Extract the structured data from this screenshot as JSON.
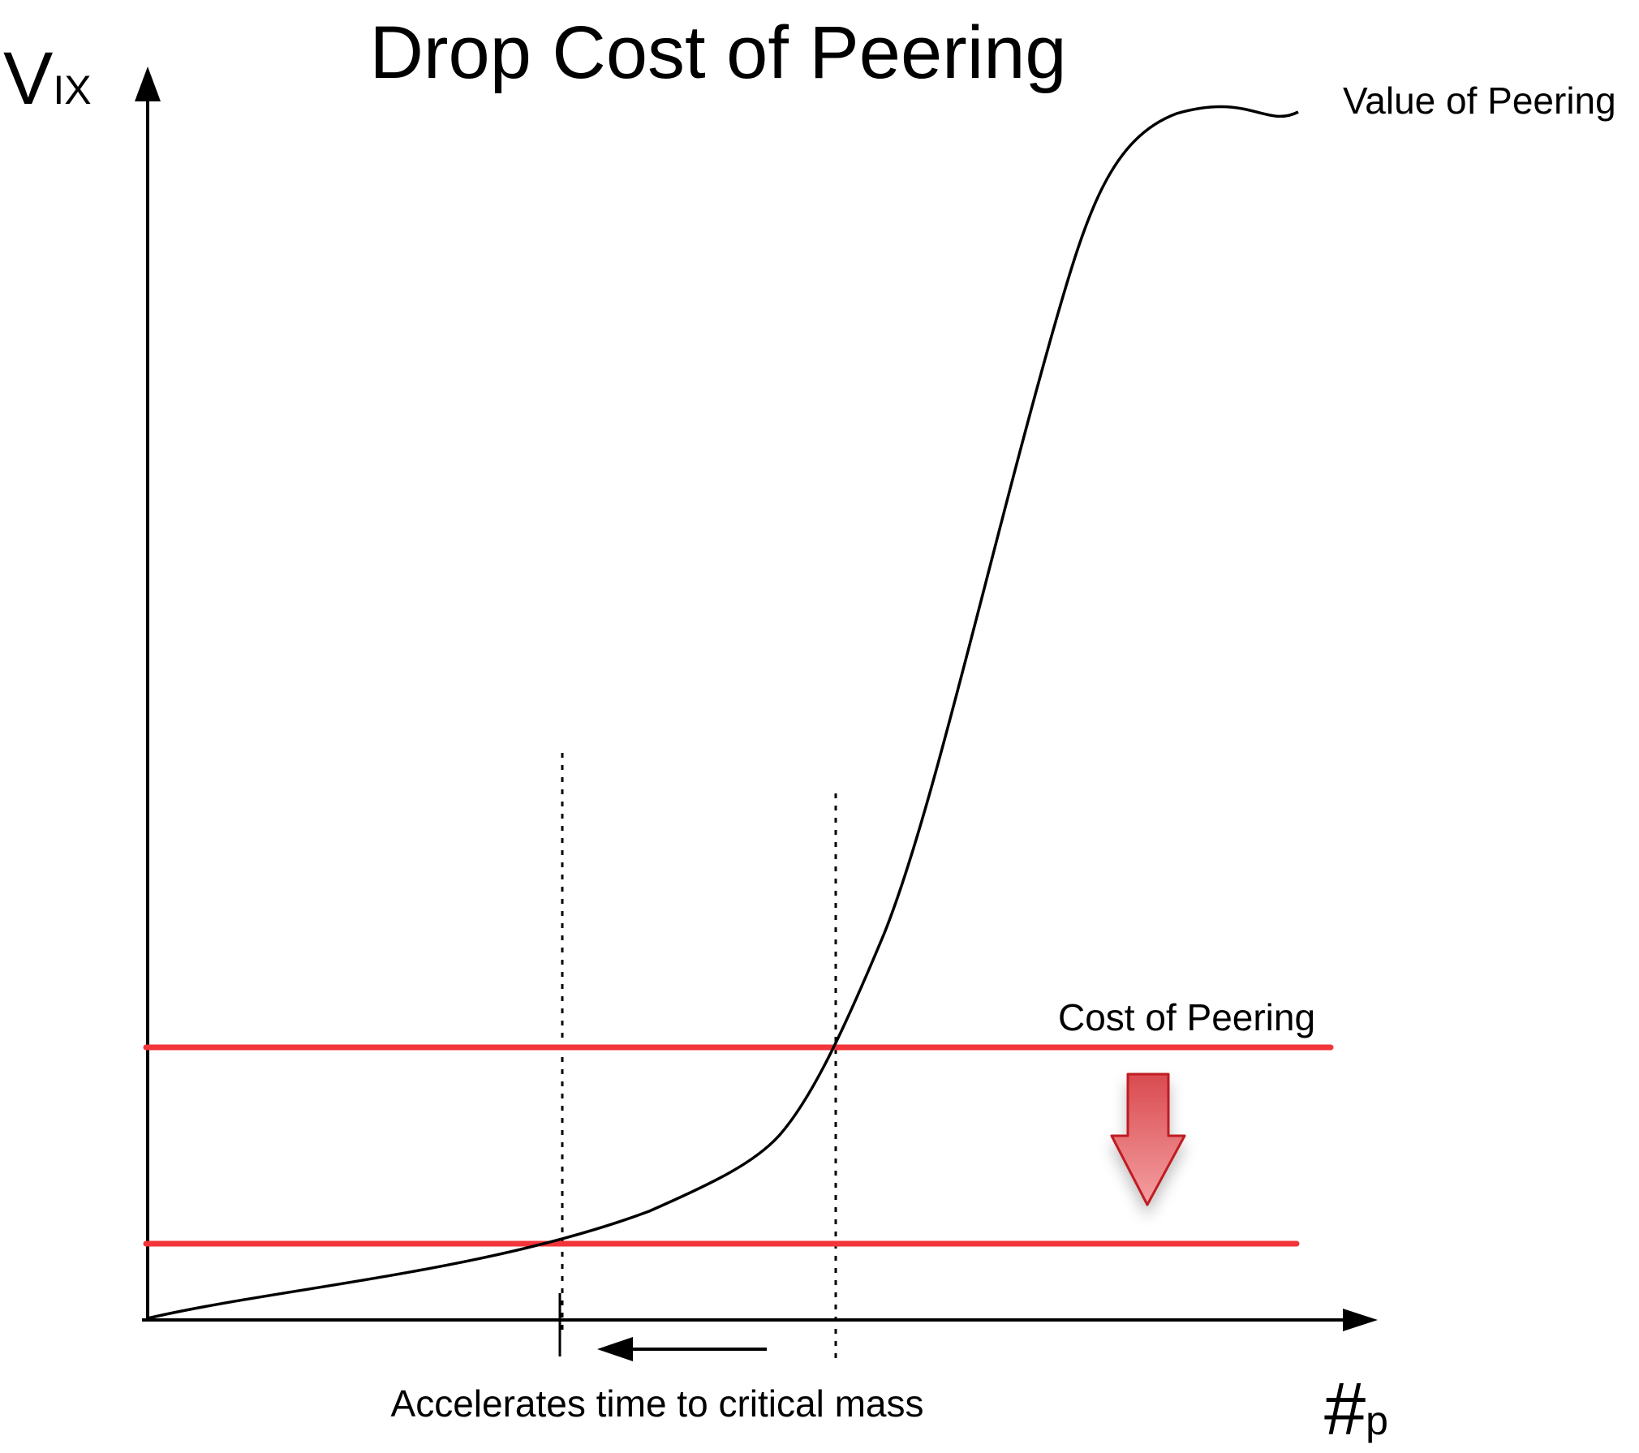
{
  "title": "Drop Cost of Peering",
  "y_axis": {
    "symbol": "V",
    "subscript": "IX"
  },
  "x_axis": {
    "symbol": "#",
    "subscript": "p"
  },
  "curve_label": "Value of Peering",
  "cost_label": "Cost of Peering",
  "annotation": "Accelerates time to critical mass",
  "colors": {
    "cost_line": "#f2353a",
    "arrow_fill_top": "#d94b50",
    "arrow_fill_bottom": "#f4a0a2",
    "arrow_stroke": "#c01a20",
    "axis": "#000000"
  }
}
